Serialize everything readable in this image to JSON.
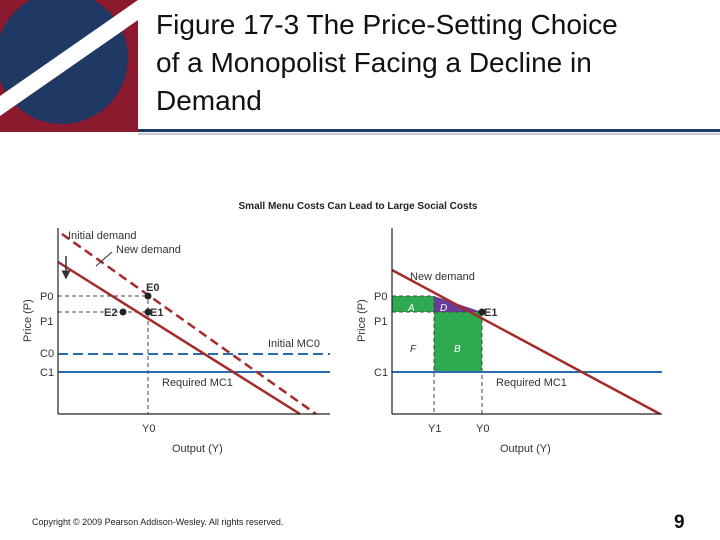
{
  "title": {
    "lines": [
      "Figure 17-3 The Price-Setting Choice",
      "of a Monopolist Facing a Decline in",
      "Demand"
    ]
  },
  "figure": {
    "heading": "Small Menu Costs Can Lead to Large Social Costs",
    "left_panel": {
      "y_axis_label": "Price (P)",
      "x_axis_label": "Output (Y)",
      "initial_demand_label": "Initial demand",
      "new_demand_label": "New demand",
      "initial_mc_label": "Initial MC0",
      "required_mc_label": "Required MC1",
      "p0": "P0",
      "p1": "P1",
      "c0": "C0",
      "c1": "C1",
      "y0": "Y0",
      "e0": "E0",
      "e1": "E1",
      "e2": "E2"
    },
    "right_panel": {
      "y_axis_label": "Price (P)",
      "x_axis_label": "Output (Y)",
      "new_demand_label": "New demand",
      "required_mc_label": "Required MC1",
      "p0": "P0",
      "p1": "P1",
      "c1": "C1",
      "y1": "Y1",
      "y0": "Y0",
      "e1": "E1",
      "area_a": "A",
      "area_d": "D",
      "area_f": "F",
      "area_b": "B"
    }
  },
  "footer": {
    "copyright": "Copyright © 2009 Pearson Addison-Wesley. All rights reserved.",
    "slide_number": "9"
  },
  "colors": {
    "navy": "#1f3864",
    "maroon": "#8b1a2e",
    "demand_red": "#a52a2a",
    "mc_blue": "#2b6cb0",
    "guide": "#444444",
    "green_area": "#2eaa4f",
    "purple_area": "#6a3d9a"
  }
}
